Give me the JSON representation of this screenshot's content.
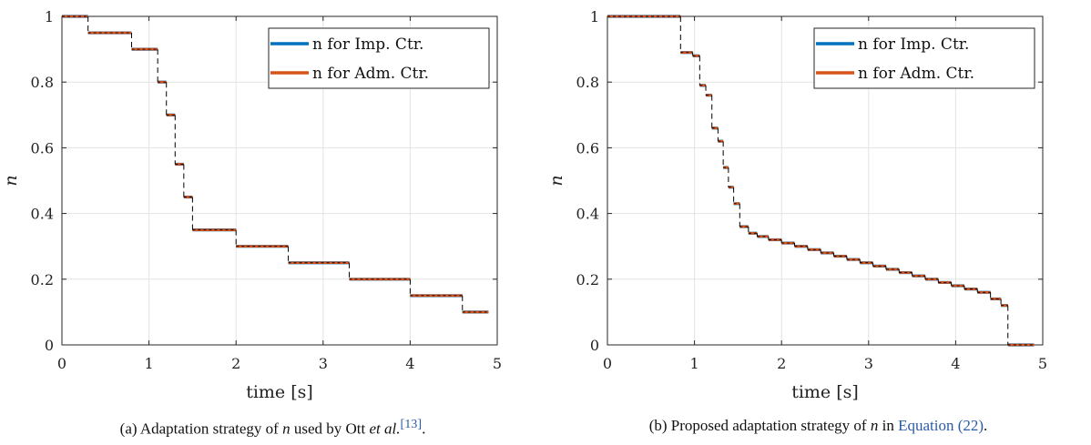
{
  "colors": {
    "series1": "#0072BD",
    "series2": "#D95319",
    "overlay": "#000000",
    "grid": "#e3e3e3",
    "axis": "#262626"
  },
  "panels": [
    {
      "caption": {
        "pre": "(a) Adaptation strategy of ",
        "var": "n",
        "mid": " used by Ott ",
        "etal": "et al.",
        "ref": "[13]",
        "post": "."
      },
      "chart_data": {
        "type": "line",
        "xlabel": "time [s]",
        "ylabel": "n",
        "xlim": [
          0,
          5
        ],
        "ylim": [
          0,
          1
        ],
        "xticks": [
          "0",
          "1",
          "2",
          "3",
          "4",
          "5"
        ],
        "yticks": [
          "0",
          "0.2",
          "0.4",
          "0.6",
          "0.8",
          "1"
        ],
        "grid": true,
        "legend": "top-right",
        "series": [
          {
            "name": "n for Imp. Ctr.",
            "x": [
              0,
              0.3,
              0.8,
              1.1,
              1.2,
              1.3,
              1.4,
              1.5,
              2.0,
              2.6,
              3.3,
              4.0,
              4.6,
              4.9
            ],
            "y": [
              1.0,
              0.95,
              0.9,
              0.8,
              0.7,
              0.55,
              0.45,
              0.35,
              0.3,
              0.25,
              0.2,
              0.15,
              0.1,
              0.1
            ]
          },
          {
            "name": "n for Adm. Ctr.",
            "x": [
              0,
              0.3,
              0.8,
              1.1,
              1.2,
              1.3,
              1.4,
              1.5,
              2.0,
              2.6,
              3.3,
              4.0,
              4.6,
              4.9
            ],
            "y": [
              1.0,
              0.95,
              0.9,
              0.8,
              0.7,
              0.55,
              0.45,
              0.35,
              0.3,
              0.25,
              0.2,
              0.15,
              0.1,
              0.1
            ]
          }
        ]
      }
    },
    {
      "caption": {
        "pre": "(b) Proposed adaptation strategy of ",
        "var": "n",
        "mid": " in ",
        "link": "Equation (22)",
        "post": "."
      },
      "chart_data": {
        "type": "line",
        "xlabel": "time [s]",
        "ylabel": "n",
        "xlim": [
          0,
          5
        ],
        "ylim": [
          0,
          1
        ],
        "xticks": [
          "0",
          "1",
          "2",
          "3",
          "4",
          "5"
        ],
        "yticks": [
          "0",
          "0.2",
          "0.4",
          "0.6",
          "0.8",
          "1"
        ],
        "grid": true,
        "legend": "top-right",
        "series": [
          {
            "name": "n for Imp. Ctr.",
            "x": [
              0,
              0.84,
              0.98,
              1.06,
              1.13,
              1.2,
              1.27,
              1.33,
              1.39,
              1.45,
              1.52,
              1.62,
              1.72,
              1.85,
              2.0,
              2.15,
              2.3,
              2.45,
              2.6,
              2.75,
              2.9,
              3.05,
              3.2,
              3.35,
              3.5,
              3.65,
              3.8,
              3.95,
              4.1,
              4.25,
              4.4,
              4.52,
              4.6,
              4.9
            ],
            "y": [
              1.0,
              0.89,
              0.88,
              0.79,
              0.76,
              0.66,
              0.62,
              0.54,
              0.48,
              0.43,
              0.36,
              0.34,
              0.33,
              0.32,
              0.31,
              0.3,
              0.29,
              0.28,
              0.27,
              0.26,
              0.25,
              0.24,
              0.23,
              0.22,
              0.21,
              0.2,
              0.19,
              0.18,
              0.17,
              0.16,
              0.14,
              0.12,
              0.0,
              0.0
            ]
          },
          {
            "name": "n for Adm. Ctr.",
            "x": [
              0,
              0.84,
              0.98,
              1.06,
              1.13,
              1.2,
              1.27,
              1.33,
              1.39,
              1.45,
              1.52,
              1.62,
              1.72,
              1.85,
              2.0,
              2.15,
              2.3,
              2.45,
              2.6,
              2.75,
              2.9,
              3.05,
              3.2,
              3.35,
              3.5,
              3.65,
              3.8,
              3.95,
              4.1,
              4.25,
              4.4,
              4.52,
              4.6,
              4.9
            ],
            "y": [
              1.0,
              0.89,
              0.88,
              0.79,
              0.76,
              0.66,
              0.62,
              0.54,
              0.48,
              0.43,
              0.36,
              0.34,
              0.33,
              0.32,
              0.31,
              0.3,
              0.29,
              0.28,
              0.27,
              0.26,
              0.25,
              0.24,
              0.23,
              0.22,
              0.21,
              0.2,
              0.19,
              0.18,
              0.17,
              0.16,
              0.14,
              0.12,
              0.0,
              0.0
            ]
          }
        ]
      }
    }
  ]
}
